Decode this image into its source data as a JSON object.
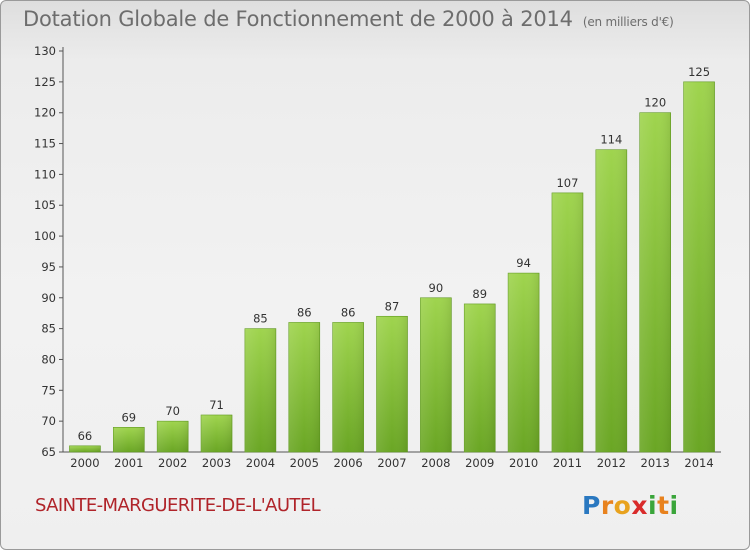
{
  "title": "Dotation Globale de Fonctionnement de 2000 à 2014",
  "subtitle": "(en milliers d'€)",
  "commune": "SAINTE-MARGUERITE-DE-L'AUTEL",
  "logo": {
    "letters": [
      "P",
      "r",
      "o",
      "x",
      "i",
      "t",
      "i"
    ],
    "colors": [
      "#2a78c0",
      "#e8821e",
      "#e8a21e",
      "#d92b2b",
      "#3aa53a",
      "#e8821e",
      "#3aa53a"
    ]
  },
  "chart_data": {
    "type": "bar",
    "title": "Dotation Globale de Fonctionnement de 2000 à 2014",
    "categories": [
      "2000",
      "2001",
      "2002",
      "2003",
      "2004",
      "2005",
      "2006",
      "2007",
      "2008",
      "2009",
      "2010",
      "2011",
      "2012",
      "2013",
      "2014"
    ],
    "values": [
      66,
      69,
      70,
      71,
      85,
      86,
      86,
      87,
      90,
      89,
      94,
      107,
      114,
      120,
      125
    ],
    "ylim": [
      65,
      130
    ],
    "yticks": [
      65,
      70,
      75,
      80,
      85,
      90,
      95,
      100,
      105,
      110,
      115,
      120,
      125,
      130
    ],
    "grid": false,
    "bar_color": "#8cc63f"
  }
}
